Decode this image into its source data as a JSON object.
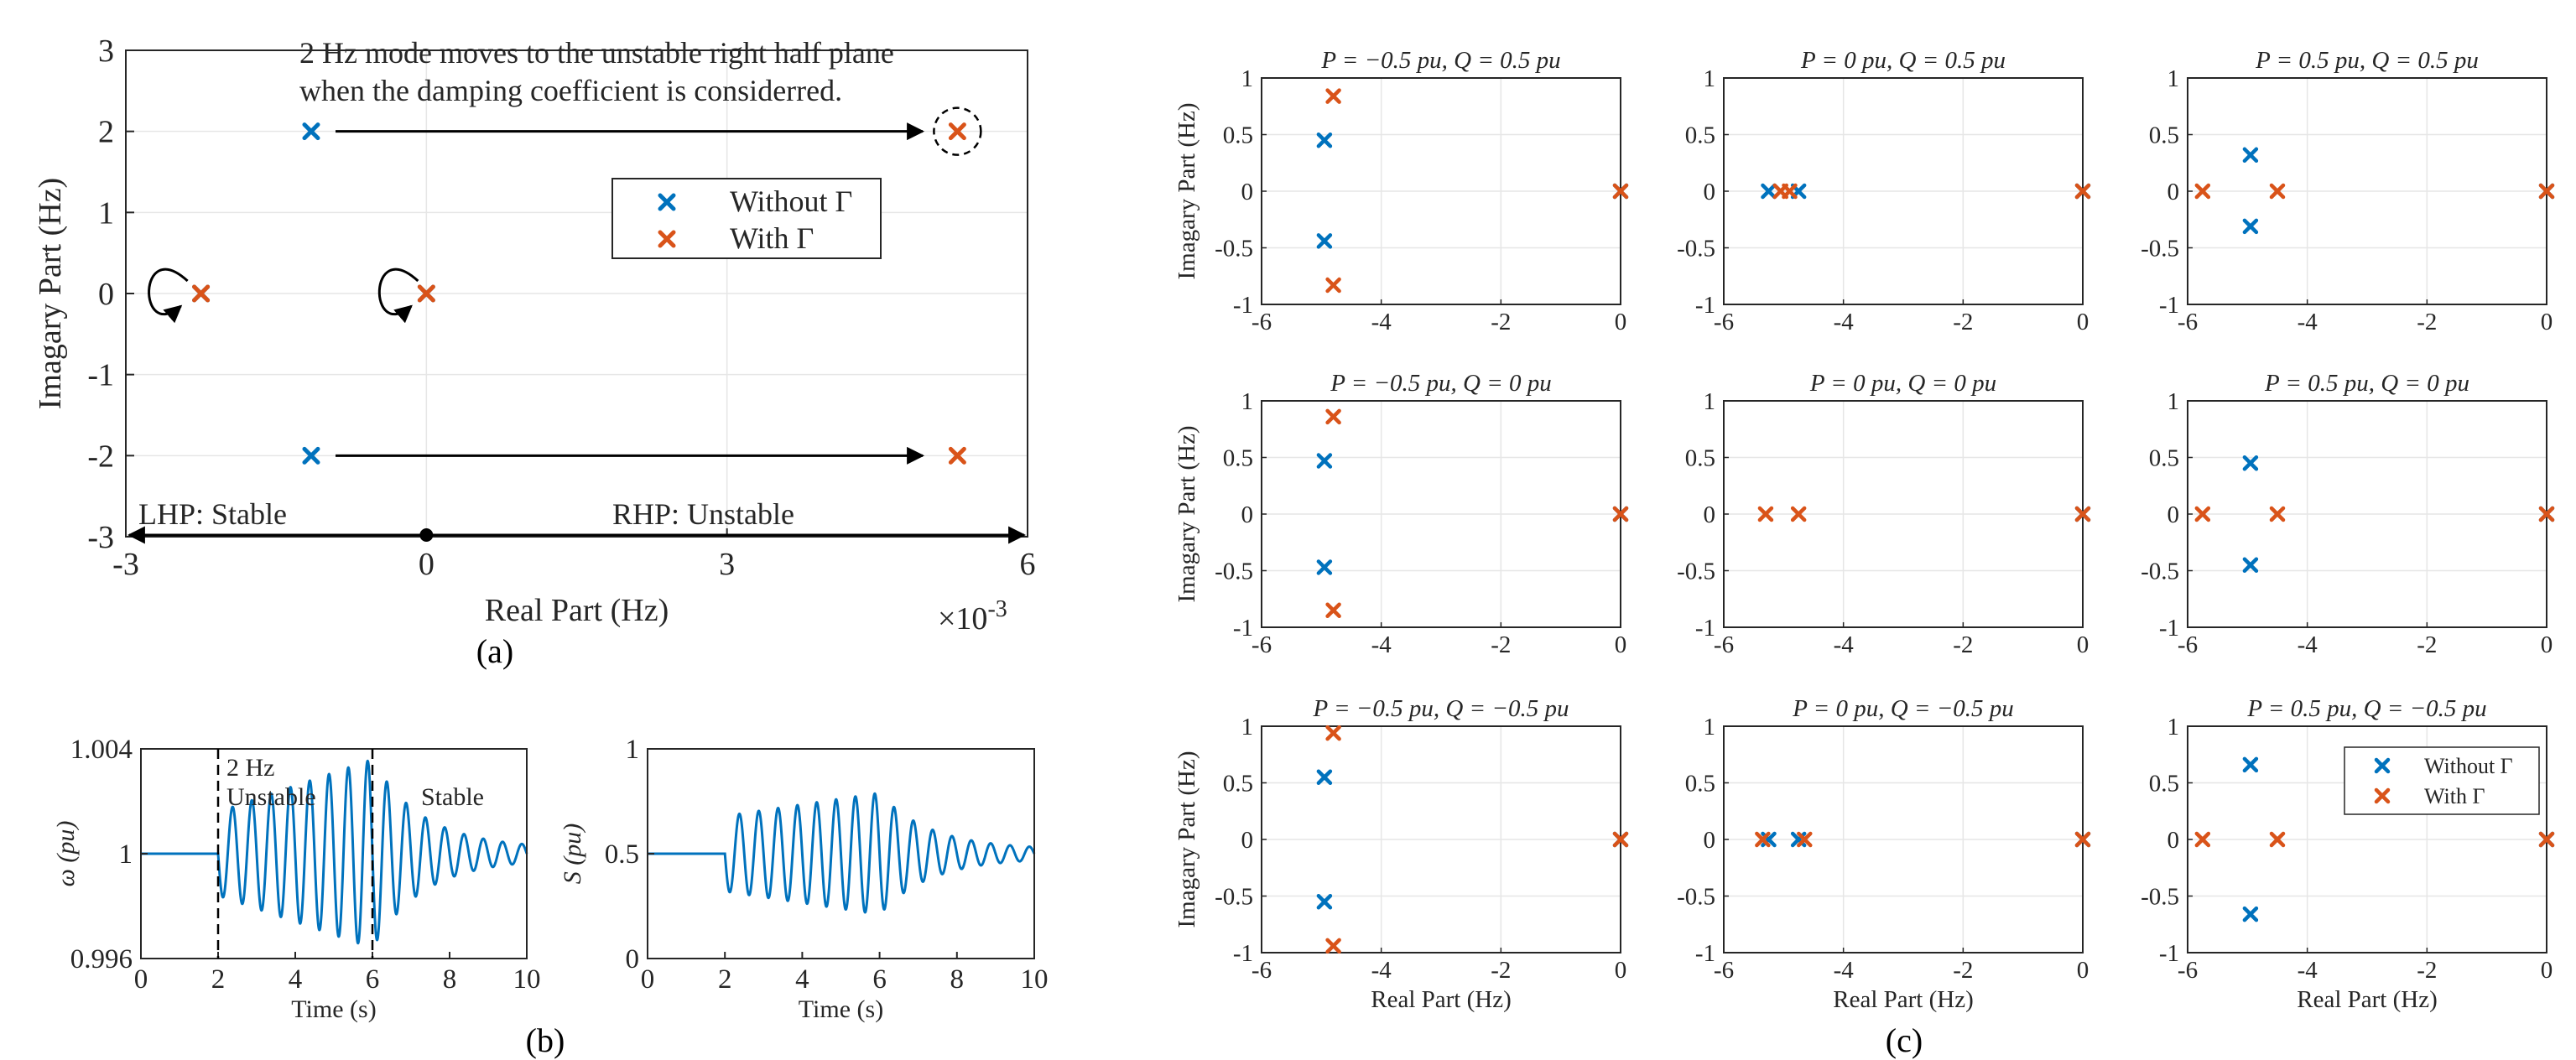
{
  "colors": {
    "without": "#0072BD",
    "with": "#D95319",
    "axis": "#262626",
    "grid": "#e6e6e6"
  },
  "captions": {
    "a": "(a)",
    "b": "(b)",
    "c": "(c)"
  },
  "chart_data": [
    {
      "id": "a",
      "type": "scatter",
      "xlabel": "Real Part (Hz)",
      "ylabel": "Imagary Part (Hz)",
      "x_exponent": "×10",
      "x_exponent_power": "-3",
      "xlim": [
        -3,
        6
      ],
      "ylim": [
        -3,
        3
      ],
      "xticks": [
        "-3",
        "0",
        "3",
        "6"
      ],
      "yticks": [
        "3",
        "2",
        "1",
        "0",
        "-1",
        "-2",
        "-3"
      ],
      "grid": true,
      "legend_position": "upper-right",
      "series": [
        {
          "name": "Without Γ",
          "color": "#0072BD",
          "points": [
            [
              -1.15,
              2.0
            ],
            [
              -1.15,
              -2.0
            ],
            [
              -2.25,
              0
            ],
            [
              0,
              0
            ]
          ]
        },
        {
          "name": "With Γ",
          "color": "#D95319",
          "points": [
            [
              5.3,
              2.0
            ],
            [
              5.3,
              -2.0
            ],
            [
              -2.25,
              0
            ],
            [
              0,
              0
            ]
          ]
        }
      ],
      "annotations": {
        "top_line1": "2 Hz mode moves to the unstable right half plane",
        "top_line2": "when the damping coefficient is considerred.",
        "lhp": "LHP: Stable",
        "rhp": "RHP: Unstable"
      }
    },
    {
      "id": "b-left",
      "type": "line",
      "xlabel": "Time (s)",
      "ylabel": "ω (pu)",
      "xlim": [
        0,
        10
      ],
      "ylim": [
        0.996,
        1.004
      ],
      "xticks": [
        "0",
        "2",
        "4",
        "6",
        "8",
        "10"
      ],
      "yticks": [
        "1.004",
        "1",
        "0.996"
      ],
      "annotations": {
        "unstable_1": "2 Hz",
        "unstable_2": "Unstable",
        "stable": "Stable"
      },
      "signal": {
        "base": 1.0,
        "start": 2,
        "grow_until": 6,
        "frequency_hz": 2,
        "amp_start": 0.0016,
        "amp_peak": 0.0036,
        "amp_end": 0.0002
      }
    },
    {
      "id": "b-right",
      "type": "line",
      "xlabel": "Time (s)",
      "ylabel": "S (pu)",
      "xlim": [
        0,
        10
      ],
      "ylim": [
        0,
        1
      ],
      "xticks": [
        "0",
        "2",
        "4",
        "6",
        "8",
        "10"
      ],
      "yticks": [
        "1",
        "0.5",
        "0"
      ],
      "signal": {
        "base": 0.5,
        "start": 2,
        "grow_until": 6,
        "frequency_hz": 2,
        "amp_start": 0.18,
        "amp_peak": 0.29,
        "amp_end": 0.02
      }
    },
    {
      "id": "c",
      "type": "scatter",
      "xlim": [
        -6,
        0
      ],
      "ylim": [
        -1,
        1
      ],
      "xticks": [
        "-6",
        "-4",
        "-2",
        "0"
      ],
      "yticks": [
        "1",
        "0.5",
        "0",
        "-0.5",
        "-1"
      ],
      "xlabel": "Real Part (Hz)",
      "ylabel": "Imagary Part (Hz)",
      "legend": [
        "Without Γ",
        "With Γ"
      ],
      "panels": [
        {
          "title": "P = −0.5 pu, Q = 0.5 pu",
          "without": [
            [
              -4.95,
              0.45
            ],
            [
              -4.95,
              -0.44
            ],
            [
              0,
              0
            ]
          ],
          "with": [
            [
              -4.8,
              0.84
            ],
            [
              -4.8,
              -0.83
            ],
            [
              0,
              0
            ]
          ]
        },
        {
          "title": "P = 0 pu, Q = 0.5 pu",
          "without": [
            [
              -5.25,
              0
            ],
            [
              -4.75,
              0
            ],
            [
              0,
              0
            ]
          ],
          "with": [
            [
              -5.05,
              0
            ],
            [
              -4.9,
              0
            ],
            [
              0,
              0
            ]
          ]
        },
        {
          "title": "P = 0.5 pu, Q = 0.5 pu",
          "without": [
            [
              -4.95,
              0.32
            ],
            [
              -4.95,
              -0.31
            ],
            [
              0,
              0
            ]
          ],
          "with": [
            [
              -5.75,
              0
            ],
            [
              -4.5,
              0
            ],
            [
              0,
              0
            ]
          ]
        },
        {
          "title": "P = −0.5 pu, Q = 0 pu",
          "without": [
            [
              -4.95,
              0.47
            ],
            [
              -4.95,
              -0.47
            ],
            [
              0,
              0
            ]
          ],
          "with": [
            [
              -4.8,
              0.86
            ],
            [
              -4.8,
              -0.85
            ],
            [
              0,
              0
            ]
          ]
        },
        {
          "title": "P = 0 pu, Q = 0 pu",
          "without": [
            [
              0,
              0
            ]
          ],
          "with": [
            [
              -5.3,
              0
            ],
            [
              -4.75,
              0
            ],
            [
              0,
              0
            ]
          ]
        },
        {
          "title": "P = 0.5 pu, Q = 0 pu",
          "without": [
            [
              -4.95,
              0.45
            ],
            [
              -4.95,
              -0.45
            ],
            [
              0,
              0
            ]
          ],
          "with": [
            [
              -5.75,
              0
            ],
            [
              -4.5,
              0
            ],
            [
              0,
              0
            ]
          ]
        },
        {
          "title": "P = −0.5 pu, Q = −0.5 pu",
          "without": [
            [
              -4.95,
              0.55
            ],
            [
              -4.95,
              -0.55
            ],
            [
              0,
              0
            ]
          ],
          "with": [
            [
              -4.8,
              0.94
            ],
            [
              -4.8,
              -0.94
            ],
            [
              0,
              0
            ]
          ]
        },
        {
          "title": "P = 0 pu, Q = −0.5 pu",
          "without": [
            [
              -5.25,
              0
            ],
            [
              -4.75,
              0
            ],
            [
              0,
              0
            ]
          ],
          "with": [
            [
              -5.35,
              0
            ],
            [
              -4.65,
              0
            ],
            [
              0,
              0
            ]
          ]
        },
        {
          "title": "P = 0.5 pu, Q = −0.5 pu",
          "without": [
            [
              -4.95,
              0.66
            ],
            [
              -4.95,
              -0.66
            ],
            [
              0,
              0
            ]
          ],
          "with": [
            [
              -5.75,
              0
            ],
            [
              -4.5,
              0
            ],
            [
              0,
              0
            ]
          ],
          "show_legend": true
        }
      ]
    }
  ]
}
